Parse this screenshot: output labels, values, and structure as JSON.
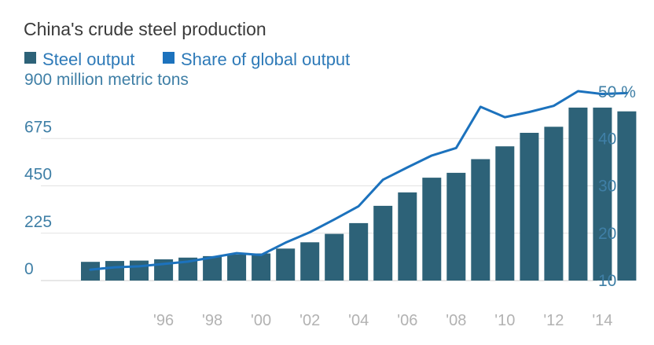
{
  "chart_data": {
    "type": "bar",
    "title": "China's crude steel production",
    "legend": {
      "placement": "top-left",
      "entries": [
        {
          "label": "Steel output",
          "color": "#2d6278"
        },
        {
          "label": "Share of global output",
          "color": "#1c72bd"
        }
      ]
    },
    "categories": [
      "1993",
      "1994",
      "1995",
      "1996",
      "1997",
      "1998",
      "1999",
      "2000",
      "2001",
      "2002",
      "2003",
      "2004",
      "2005",
      "2006",
      "2007",
      "2008",
      "2009",
      "2010",
      "2011",
      "2012",
      "2013",
      "2014",
      "2015"
    ],
    "x_tick_labels": [
      "'96",
      "'98",
      "'00",
      "'02",
      "'04",
      "'06",
      "'08",
      "'10",
      "'12",
      "'14"
    ],
    "x_tick_years": [
      "1996",
      "1998",
      "2000",
      "2002",
      "2004",
      "2006",
      "2008",
      "2010",
      "2012",
      "2014"
    ],
    "series": [
      {
        "name": "Steel output",
        "type": "bar",
        "axis": "left",
        "color": "#2d6278",
        "values": [
          89,
          93,
          95,
          101,
          109,
          116,
          124,
          129,
          152,
          182,
          222,
          273,
          355,
          419,
          489,
          512,
          577,
          638,
          702,
          731,
          822,
          822,
          804
        ]
      },
      {
        "name": "Share of global output",
        "type": "line",
        "axis": "right",
        "color": "#1c72bd",
        "values": [
          12.3,
          12.8,
          13.0,
          13.5,
          14.0,
          14.9,
          15.8,
          15.4,
          18.0,
          20.2,
          22.9,
          25.7,
          31.3,
          33.9,
          36.4,
          38.0,
          46.7,
          44.5,
          45.6,
          46.9,
          50.0,
          49.4,
          49.6
        ]
      }
    ],
    "y_left": {
      "label": "million metric tons",
      "range": [
        0,
        900
      ],
      "ticks": [
        "0",
        "225",
        "450",
        "675",
        "900"
      ],
      "top_label": "900 million metric tons"
    },
    "y_right": {
      "range": [
        10,
        50
      ],
      "ticks": [
        "10",
        "20",
        "30",
        "40",
        "50"
      ],
      "top_label": "50 %"
    },
    "grid": true,
    "colors": {
      "bar": "#2d6278",
      "line": "#1c72bd",
      "axis_text": "#3f7fa6",
      "x_text": "#b2b2b2",
      "grid": "#e2e2e2"
    }
  }
}
